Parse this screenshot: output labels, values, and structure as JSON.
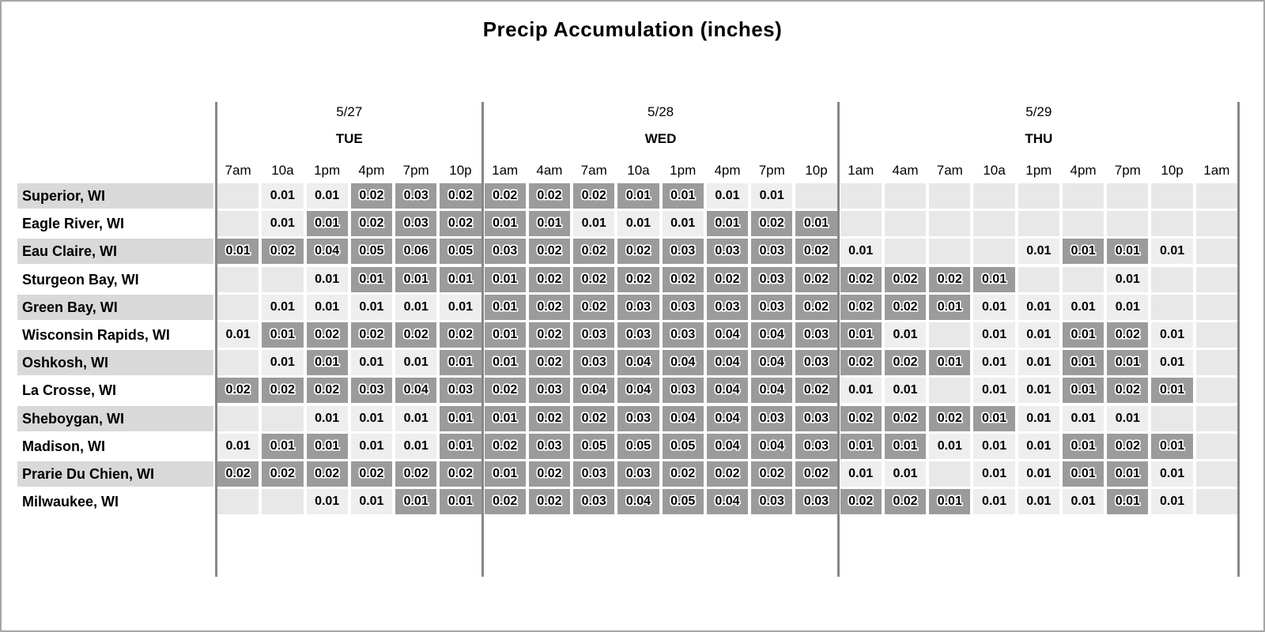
{
  "title": "Precip Accumulation (inches)",
  "colors": {
    "heavy_cell": "#9b9b9b",
    "light_cell": "#eeeeee",
    "empty_cell": "#e8e8e8",
    "row_label_alt": "#d9d9d9",
    "day_separator": "#878787",
    "text": "#000000"
  },
  "chart_data": {
    "type": "heatmap",
    "title": "Precip Accumulation (inches)",
    "units": "inches",
    "legend": "cell shading: empty = no precip, light = trace value, dark = emphasized value",
    "day_groups": [
      {
        "date": "5/27",
        "day": "TUE",
        "times": [
          "7am",
          "10a",
          "1pm",
          "4pm",
          "7pm",
          "10p"
        ]
      },
      {
        "date": "5/28",
        "day": "WED",
        "times": [
          "1am",
          "4am",
          "7am",
          "10a",
          "1pm",
          "4pm",
          "7pm",
          "10p"
        ]
      },
      {
        "date": "5/29",
        "day": "THU",
        "times": [
          "1am",
          "4am",
          "7am",
          "10a",
          "1pm",
          "4pm",
          "7pm",
          "10p",
          "1am"
        ]
      }
    ],
    "rows": [
      {
        "location": "Superior, WI",
        "values": [
          "",
          "0.01",
          "0.01",
          "0.02",
          "0.03",
          "0.02",
          "0.02",
          "0.02",
          "0.02",
          "0.01",
          "0.01",
          "0.01",
          "0.01",
          "",
          "",
          "",
          "",
          "",
          "",
          "",
          "",
          "",
          ""
        ],
        "dark": [
          0,
          0,
          0,
          1,
          1,
          1,
          1,
          1,
          1,
          1,
          1,
          0,
          0,
          0,
          0,
          0,
          0,
          0,
          0,
          0,
          0,
          0,
          0
        ]
      },
      {
        "location": "Eagle River, WI",
        "values": [
          "",
          "0.01",
          "0.01",
          "0.02",
          "0.03",
          "0.02",
          "0.01",
          "0.01",
          "0.01",
          "0.01",
          "0.01",
          "0.01",
          "0.02",
          "0.01",
          "",
          "",
          "",
          "",
          "",
          "",
          "",
          "",
          ""
        ],
        "dark": [
          0,
          0,
          1,
          1,
          1,
          1,
          1,
          1,
          0,
          0,
          0,
          1,
          1,
          1,
          0,
          0,
          0,
          0,
          0,
          0,
          0,
          0,
          0
        ]
      },
      {
        "location": "Eau Claire, WI",
        "values": [
          "0.01",
          "0.02",
          "0.04",
          "0.05",
          "0.06",
          "0.05",
          "0.03",
          "0.02",
          "0.02",
          "0.02",
          "0.03",
          "0.03",
          "0.03",
          "0.02",
          "0.01",
          "",
          "",
          "",
          "0.01",
          "0.01",
          "0.01",
          "0.01",
          ""
        ],
        "dark": [
          1,
          1,
          1,
          1,
          1,
          1,
          1,
          1,
          1,
          1,
          1,
          1,
          1,
          1,
          0,
          0,
          0,
          0,
          0,
          1,
          1,
          0,
          0
        ]
      },
      {
        "location": "Sturgeon Bay, WI",
        "values": [
          "",
          "",
          "0.01",
          "0.01",
          "0.01",
          "0.01",
          "0.01",
          "0.02",
          "0.02",
          "0.02",
          "0.02",
          "0.02",
          "0.03",
          "0.02",
          "0.02",
          "0.02",
          "0.02",
          "0.01",
          "",
          "",
          "0.01",
          "",
          ""
        ],
        "dark": [
          0,
          0,
          0,
          1,
          1,
          1,
          1,
          1,
          1,
          1,
          1,
          1,
          1,
          1,
          1,
          1,
          1,
          1,
          0,
          0,
          0,
          0,
          0
        ]
      },
      {
        "location": "Green Bay, WI",
        "values": [
          "",
          "0.01",
          "0.01",
          "0.01",
          "0.01",
          "0.01",
          "0.01",
          "0.02",
          "0.02",
          "0.03",
          "0.03",
          "0.03",
          "0.03",
          "0.02",
          "0.02",
          "0.02",
          "0.01",
          "0.01",
          "0.01",
          "0.01",
          "0.01",
          "",
          ""
        ],
        "dark": [
          0,
          0,
          0,
          0,
          0,
          0,
          1,
          1,
          1,
          1,
          1,
          1,
          1,
          1,
          1,
          1,
          1,
          0,
          0,
          0,
          0,
          0,
          0
        ]
      },
      {
        "location": "Wisconsin Rapids, WI",
        "values": [
          "0.01",
          "0.01",
          "0.02",
          "0.02",
          "0.02",
          "0.02",
          "0.01",
          "0.02",
          "0.03",
          "0.03",
          "0.03",
          "0.04",
          "0.04",
          "0.03",
          "0.01",
          "0.01",
          "",
          "0.01",
          "0.01",
          "0.01",
          "0.02",
          "0.01",
          ""
        ],
        "dark": [
          0,
          1,
          1,
          1,
          1,
          1,
          1,
          1,
          1,
          1,
          1,
          1,
          1,
          1,
          1,
          0,
          0,
          0,
          0,
          1,
          1,
          0,
          0
        ]
      },
      {
        "location": "Oshkosh, WI",
        "values": [
          "",
          "0.01",
          "0.01",
          "0.01",
          "0.01",
          "0.01",
          "0.01",
          "0.02",
          "0.03",
          "0.04",
          "0.04",
          "0.04",
          "0.04",
          "0.03",
          "0.02",
          "0.02",
          "0.01",
          "0.01",
          "0.01",
          "0.01",
          "0.01",
          "0.01",
          ""
        ],
        "dark": [
          0,
          0,
          1,
          0,
          0,
          1,
          1,
          1,
          1,
          1,
          1,
          1,
          1,
          1,
          1,
          1,
          1,
          0,
          0,
          1,
          1,
          0,
          0
        ]
      },
      {
        "location": "La Crosse, WI",
        "values": [
          "0.02",
          "0.02",
          "0.02",
          "0.03",
          "0.04",
          "0.03",
          "0.02",
          "0.03",
          "0.04",
          "0.04",
          "0.03",
          "0.04",
          "0.04",
          "0.02",
          "0.01",
          "0.01",
          "",
          "0.01",
          "0.01",
          "0.01",
          "0.02",
          "0.01",
          ""
        ],
        "dark": [
          1,
          1,
          1,
          1,
          1,
          1,
          1,
          1,
          1,
          1,
          1,
          1,
          1,
          1,
          0,
          0,
          0,
          0,
          0,
          1,
          1,
          1,
          0
        ]
      },
      {
        "location": "Sheboygan, WI",
        "values": [
          "",
          "",
          "0.01",
          "0.01",
          "0.01",
          "0.01",
          "0.01",
          "0.02",
          "0.02",
          "0.03",
          "0.04",
          "0.04",
          "0.03",
          "0.03",
          "0.02",
          "0.02",
          "0.02",
          "0.01",
          "0.01",
          "0.01",
          "0.01",
          "",
          ""
        ],
        "dark": [
          0,
          0,
          0,
          0,
          0,
          1,
          1,
          1,
          1,
          1,
          1,
          1,
          1,
          1,
          1,
          1,
          1,
          1,
          0,
          0,
          0,
          0,
          0
        ]
      },
      {
        "location": "Madison, WI",
        "values": [
          "0.01",
          "0.01",
          "0.01",
          "0.01",
          "0.01",
          "0.01",
          "0.02",
          "0.03",
          "0.05",
          "0.05",
          "0.05",
          "0.04",
          "0.04",
          "0.03",
          "0.01",
          "0.01",
          "0.01",
          "0.01",
          "0.01",
          "0.01",
          "0.02",
          "0.01",
          ""
        ],
        "dark": [
          0,
          1,
          1,
          0,
          0,
          1,
          1,
          1,
          1,
          1,
          1,
          1,
          1,
          1,
          1,
          1,
          0,
          0,
          0,
          1,
          1,
          1,
          0
        ]
      },
      {
        "location": "Prarie Du Chien, WI",
        "values": [
          "0.02",
          "0.02",
          "0.02",
          "0.02",
          "0.02",
          "0.02",
          "0.01",
          "0.02",
          "0.03",
          "0.03",
          "0.02",
          "0.02",
          "0.02",
          "0.02",
          "0.01",
          "0.01",
          "",
          "0.01",
          "0.01",
          "0.01",
          "0.01",
          "0.01",
          ""
        ],
        "dark": [
          1,
          1,
          1,
          1,
          1,
          1,
          1,
          1,
          1,
          1,
          1,
          1,
          1,
          1,
          0,
          0,
          0,
          0,
          0,
          1,
          1,
          0,
          0
        ]
      },
      {
        "location": "Milwaukee, WI",
        "values": [
          "",
          "",
          "0.01",
          "0.01",
          "0.01",
          "0.01",
          "0.02",
          "0.02",
          "0.03",
          "0.04",
          "0.05",
          "0.04",
          "0.03",
          "0.03",
          "0.02",
          "0.02",
          "0.01",
          "0.01",
          "0.01",
          "0.01",
          "0.01",
          "0.01",
          ""
        ],
        "dark": [
          0,
          0,
          0,
          0,
          1,
          1,
          1,
          1,
          1,
          1,
          1,
          1,
          1,
          1,
          1,
          1,
          1,
          0,
          0,
          0,
          1,
          0,
          0
        ]
      }
    ]
  }
}
